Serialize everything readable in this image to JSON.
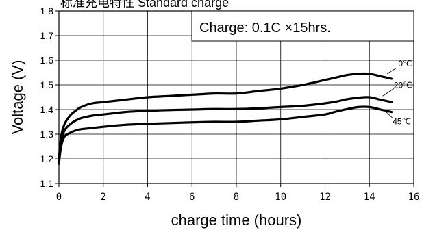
{
  "chart_data": {
    "type": "line",
    "title": "标准充电特性 Standard charge",
    "annotation": "Charge: 0.1C  ×15hrs.",
    "xlabel": "charge time (hours)",
    "ylabel": "Voltage (V)",
    "xlim": [
      0,
      16
    ],
    "ylim": [
      1.1,
      1.8
    ],
    "xticks": [
      0,
      2,
      4,
      6,
      8,
      10,
      12,
      14,
      16
    ],
    "yticks": [
      1.1,
      1.2,
      1.3,
      1.4,
      1.5,
      1.6,
      1.7,
      1.8
    ],
    "grid": true,
    "series": [
      {
        "name": "0℃",
        "x": [
          0,
          0.1,
          0.25,
          0.5,
          0.75,
          1,
          1.5,
          2,
          3,
          4,
          5,
          6,
          7,
          8,
          9,
          10,
          11,
          12,
          12.5,
          13,
          13.5,
          14,
          14.5,
          15
        ],
        "y": [
          1.2,
          1.29,
          1.34,
          1.375,
          1.395,
          1.41,
          1.425,
          1.43,
          1.44,
          1.45,
          1.455,
          1.46,
          1.465,
          1.465,
          1.475,
          1.485,
          1.5,
          1.52,
          1.53,
          1.54,
          1.545,
          1.545,
          1.535,
          1.525
        ]
      },
      {
        "name": "20℃",
        "x": [
          0,
          0.1,
          0.25,
          0.5,
          0.75,
          1,
          1.5,
          2,
          3,
          4,
          5,
          6,
          7,
          8,
          9,
          10,
          11,
          12,
          12.5,
          13,
          13.5,
          14,
          14.5,
          15
        ],
        "y": [
          1.19,
          1.27,
          1.315,
          1.34,
          1.355,
          1.365,
          1.375,
          1.38,
          1.39,
          1.395,
          1.398,
          1.4,
          1.402,
          1.402,
          1.405,
          1.41,
          1.415,
          1.425,
          1.432,
          1.442,
          1.448,
          1.45,
          1.44,
          1.43
        ]
      },
      {
        "name": "45℃",
        "x": [
          0,
          0.1,
          0.25,
          0.5,
          0.75,
          1,
          1.5,
          2,
          3,
          4,
          5,
          6,
          7,
          8,
          9,
          10,
          11,
          12,
          12.5,
          13,
          13.5,
          14,
          14.5,
          15
        ],
        "y": [
          1.18,
          1.25,
          1.29,
          1.305,
          1.315,
          1.32,
          1.325,
          1.33,
          1.338,
          1.342,
          1.345,
          1.348,
          1.35,
          1.35,
          1.355,
          1.36,
          1.37,
          1.38,
          1.392,
          1.402,
          1.41,
          1.41,
          1.4,
          1.39
        ]
      }
    ]
  }
}
